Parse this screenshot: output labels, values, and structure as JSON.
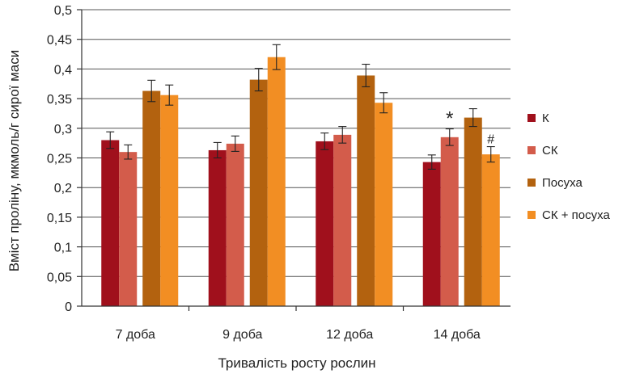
{
  "chart_data": {
    "type": "bar",
    "title": "",
    "xlabel": "Тривалість росту рослин",
    "ylabel": "Вміст проліну, мкмоль/г сирої маси",
    "categories": [
      "7 доба",
      "9 доба",
      "12 доба",
      "14 доба"
    ],
    "ylim": [
      0,
      0.5
    ],
    "yticks": [
      "0",
      "0,05",
      "0,1",
      "0,15",
      "0,2",
      "0,25",
      "0,3",
      "0,35",
      "0,4",
      "0,45",
      "0,5"
    ],
    "grid": true,
    "legend_position": "right",
    "series": [
      {
        "name": "К",
        "color": "#a0101c",
        "values": [
          0.28,
          0.263,
          0.278,
          0.243
        ],
        "errors": [
          0.014,
          0.013,
          0.014,
          0.012
        ]
      },
      {
        "name": "СК",
        "color": "#d35c4b",
        "values": [
          0.26,
          0.274,
          0.289,
          0.285
        ],
        "errors": [
          0.012,
          0.013,
          0.014,
          0.014
        ]
      },
      {
        "name": "Посуха",
        "color": "#b3620f",
        "values": [
          0.363,
          0.382,
          0.389,
          0.318
        ],
        "errors": [
          0.018,
          0.019,
          0.019,
          0.015
        ]
      },
      {
        "name": "СК + посуха",
        "color": "#f28e23",
        "values": [
          0.356,
          0.42,
          0.343,
          0.256
        ],
        "errors": [
          0.017,
          0.021,
          0.017,
          0.013
        ]
      }
    ],
    "annotations": [
      {
        "text": "*",
        "category_index": 3,
        "series_index": 1
      },
      {
        "text": "#",
        "category_index": 3,
        "series_index": 3
      }
    ]
  }
}
